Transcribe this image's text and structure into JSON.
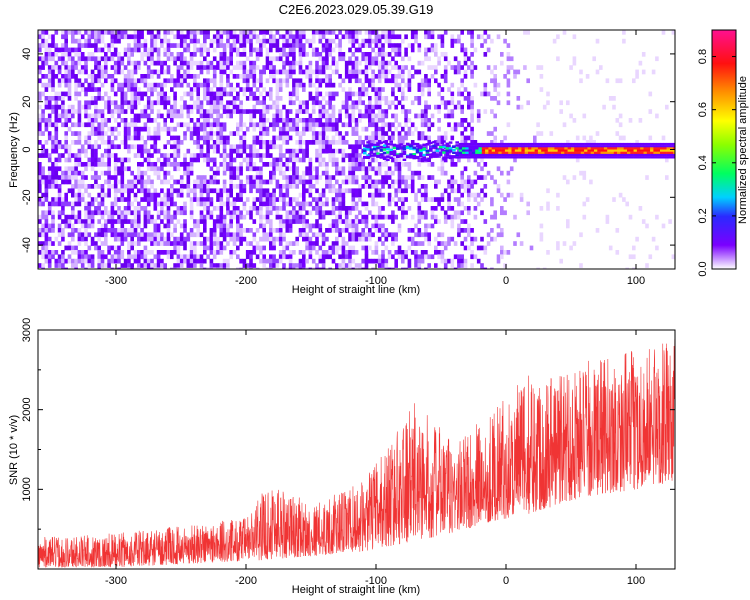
{
  "title": "C2E6.2023.029.05.39.G19",
  "chart_data": [
    {
      "type": "heatmap",
      "xlabel": "Height of straight line (km)",
      "ylabel": "Frequency (Hz)",
      "xlim": [
        -360,
        130
      ],
      "ylim": [
        -50,
        50
      ],
      "x_ticks": [
        -300,
        -200,
        -100,
        0,
        100
      ],
      "y_ticks": [
        -40,
        -20,
        0,
        20,
        40
      ],
      "colorbar": {
        "label": "Normalized spectral amplitude",
        "range": [
          0.0,
          0.9
        ],
        "ticks": [
          0.0,
          0.2,
          0.4,
          0.6,
          0.8
        ]
      },
      "dominant_line": {
        "frequency": 0,
        "from_height": -110,
        "to_height": 130
      }
    },
    {
      "type": "line",
      "xlabel": "Height of straight line (km)",
      "ylabel": "SNR (10 * v/v)",
      "xlim": [
        -360,
        130
      ],
      "ylim": [
        0,
        3000
      ],
      "x_ticks": [
        -300,
        -200,
        -100,
        0,
        100
      ],
      "y_ticks": [
        1000,
        2000,
        3000
      ],
      "series": [
        {
          "color": "#f03434",
          "envelope": [
            {
              "x": -360,
              "low": 20,
              "high": 400
            },
            {
              "x": -300,
              "low": 20,
              "high": 450
            },
            {
              "x": -250,
              "low": 60,
              "high": 550
            },
            {
              "x": -200,
              "low": 100,
              "high": 650
            },
            {
              "x": -180,
              "low": 120,
              "high": 1150
            },
            {
              "x": -150,
              "low": 160,
              "high": 800
            },
            {
              "x": -110,
              "low": 220,
              "high": 1100
            },
            {
              "x": -70,
              "low": 350,
              "high": 2100
            },
            {
              "x": -40,
              "low": 450,
              "high": 1600
            },
            {
              "x": -10,
              "low": 600,
              "high": 2000
            },
            {
              "x": 20,
              "low": 700,
              "high": 2500
            },
            {
              "x": 60,
              "low": 900,
              "high": 2600
            },
            {
              "x": 100,
              "low": 1000,
              "high": 2750
            },
            {
              "x": 130,
              "low": 1100,
              "high": 2900
            }
          ]
        }
      ]
    }
  ]
}
